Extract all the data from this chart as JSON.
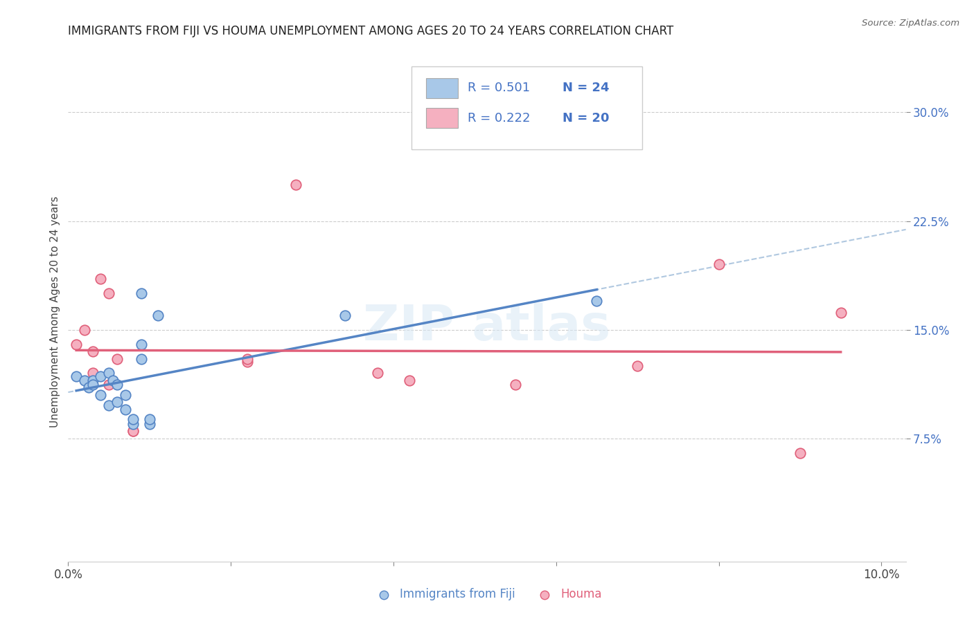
{
  "title": "IMMIGRANTS FROM FIJI VS HOUMA UNEMPLOYMENT AMONG AGES 20 TO 24 YEARS CORRELATION CHART",
  "source": "Source: ZipAtlas.com",
  "ylabel": "Unemployment Among Ages 20 to 24 years",
  "legend_label1": "Immigrants from Fiji",
  "legend_label2": "Houma",
  "xlim": [
    0.0,
    0.103
  ],
  "ylim": [
    -0.01,
    0.335
  ],
  "x_ticks": [
    0.0,
    0.02,
    0.04,
    0.06,
    0.08,
    0.1
  ],
  "x_tick_labels": [
    "0.0%",
    "",
    "",
    "",
    "",
    "10.0%"
  ],
  "y_ticks_right": [
    0.075,
    0.15,
    0.225,
    0.3
  ],
  "y_tick_labels_right": [
    "7.5%",
    "15.0%",
    "22.5%",
    "30.0%"
  ],
  "color_fiji": "#a8c8e8",
  "color_houma": "#f5b0c0",
  "color_fiji_line": "#5585c5",
  "color_houma_line": "#e0607a",
  "color_fiji_dashed": "#b0c8e0",
  "fiji_x": [
    0.001,
    0.002,
    0.0025,
    0.003,
    0.003,
    0.004,
    0.004,
    0.005,
    0.005,
    0.0055,
    0.006,
    0.006,
    0.007,
    0.007,
    0.008,
    0.008,
    0.009,
    0.009,
    0.009,
    0.01,
    0.01,
    0.011,
    0.034,
    0.065
  ],
  "fiji_y": [
    0.118,
    0.115,
    0.11,
    0.115,
    0.112,
    0.118,
    0.105,
    0.098,
    0.12,
    0.115,
    0.1,
    0.112,
    0.095,
    0.105,
    0.085,
    0.088,
    0.13,
    0.14,
    0.175,
    0.085,
    0.088,
    0.16,
    0.16,
    0.17
  ],
  "houma_x": [
    0.001,
    0.002,
    0.003,
    0.003,
    0.004,
    0.005,
    0.005,
    0.006,
    0.008,
    0.008,
    0.022,
    0.022,
    0.028,
    0.038,
    0.042,
    0.055,
    0.07,
    0.08,
    0.09,
    0.095
  ],
  "houma_y": [
    0.14,
    0.15,
    0.12,
    0.135,
    0.185,
    0.175,
    0.112,
    0.13,
    0.08,
    0.08,
    0.128,
    0.13,
    0.25,
    0.12,
    0.115,
    0.112,
    0.125,
    0.195,
    0.065,
    0.162
  ],
  "background_color": "#ffffff",
  "grid_color": "#cccccc",
  "legend_text_color": "#4472c4",
  "title_color": "#222222",
  "source_color": "#666666",
  "axis_label_color": "#444444",
  "tick_color": "#888888"
}
